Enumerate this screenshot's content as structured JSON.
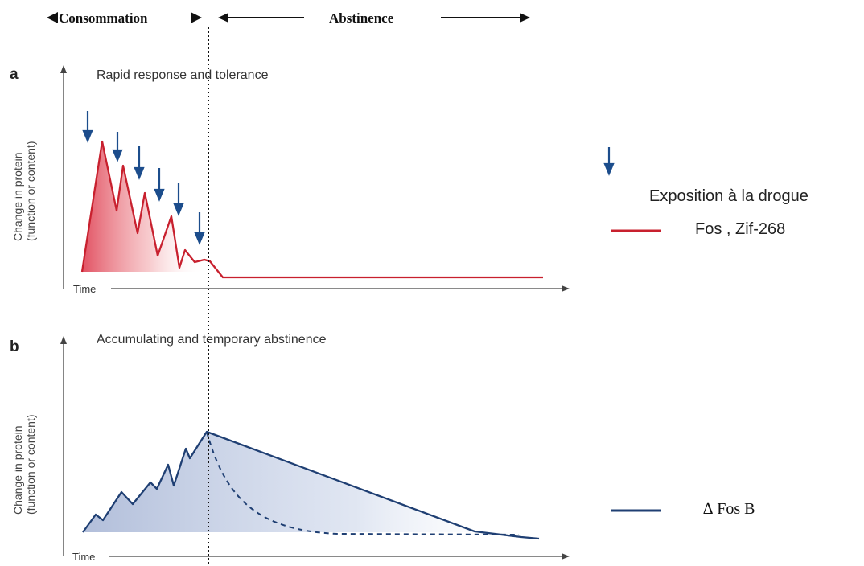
{
  "colors": {
    "red": "#c8202e",
    "blue": "#1f3f73",
    "arrow_blue": "#1c4d8c",
    "axis": "#333333"
  },
  "header": {
    "consommation_label": "Consommation",
    "abstinence_label": "Abstinence"
  },
  "panel_a": {
    "letter": "a",
    "title": "Rapid response and tolerance",
    "ylabel_line1": "Change in protein",
    "ylabel_line2": "(function or content)",
    "xlabel": "Time"
  },
  "panel_b": {
    "letter": "b",
    "title": "Accumulating and temporary abstinence",
    "ylabel_line1": "Change in protein",
    "ylabel_line2": "(function or content)",
    "xlabel": "Time"
  },
  "legend": {
    "drug_exposure": "Exposition à la drogue",
    "fos_zif": "Fos , Zif-268",
    "delta_fosb": "∆ Fos B"
  }
}
